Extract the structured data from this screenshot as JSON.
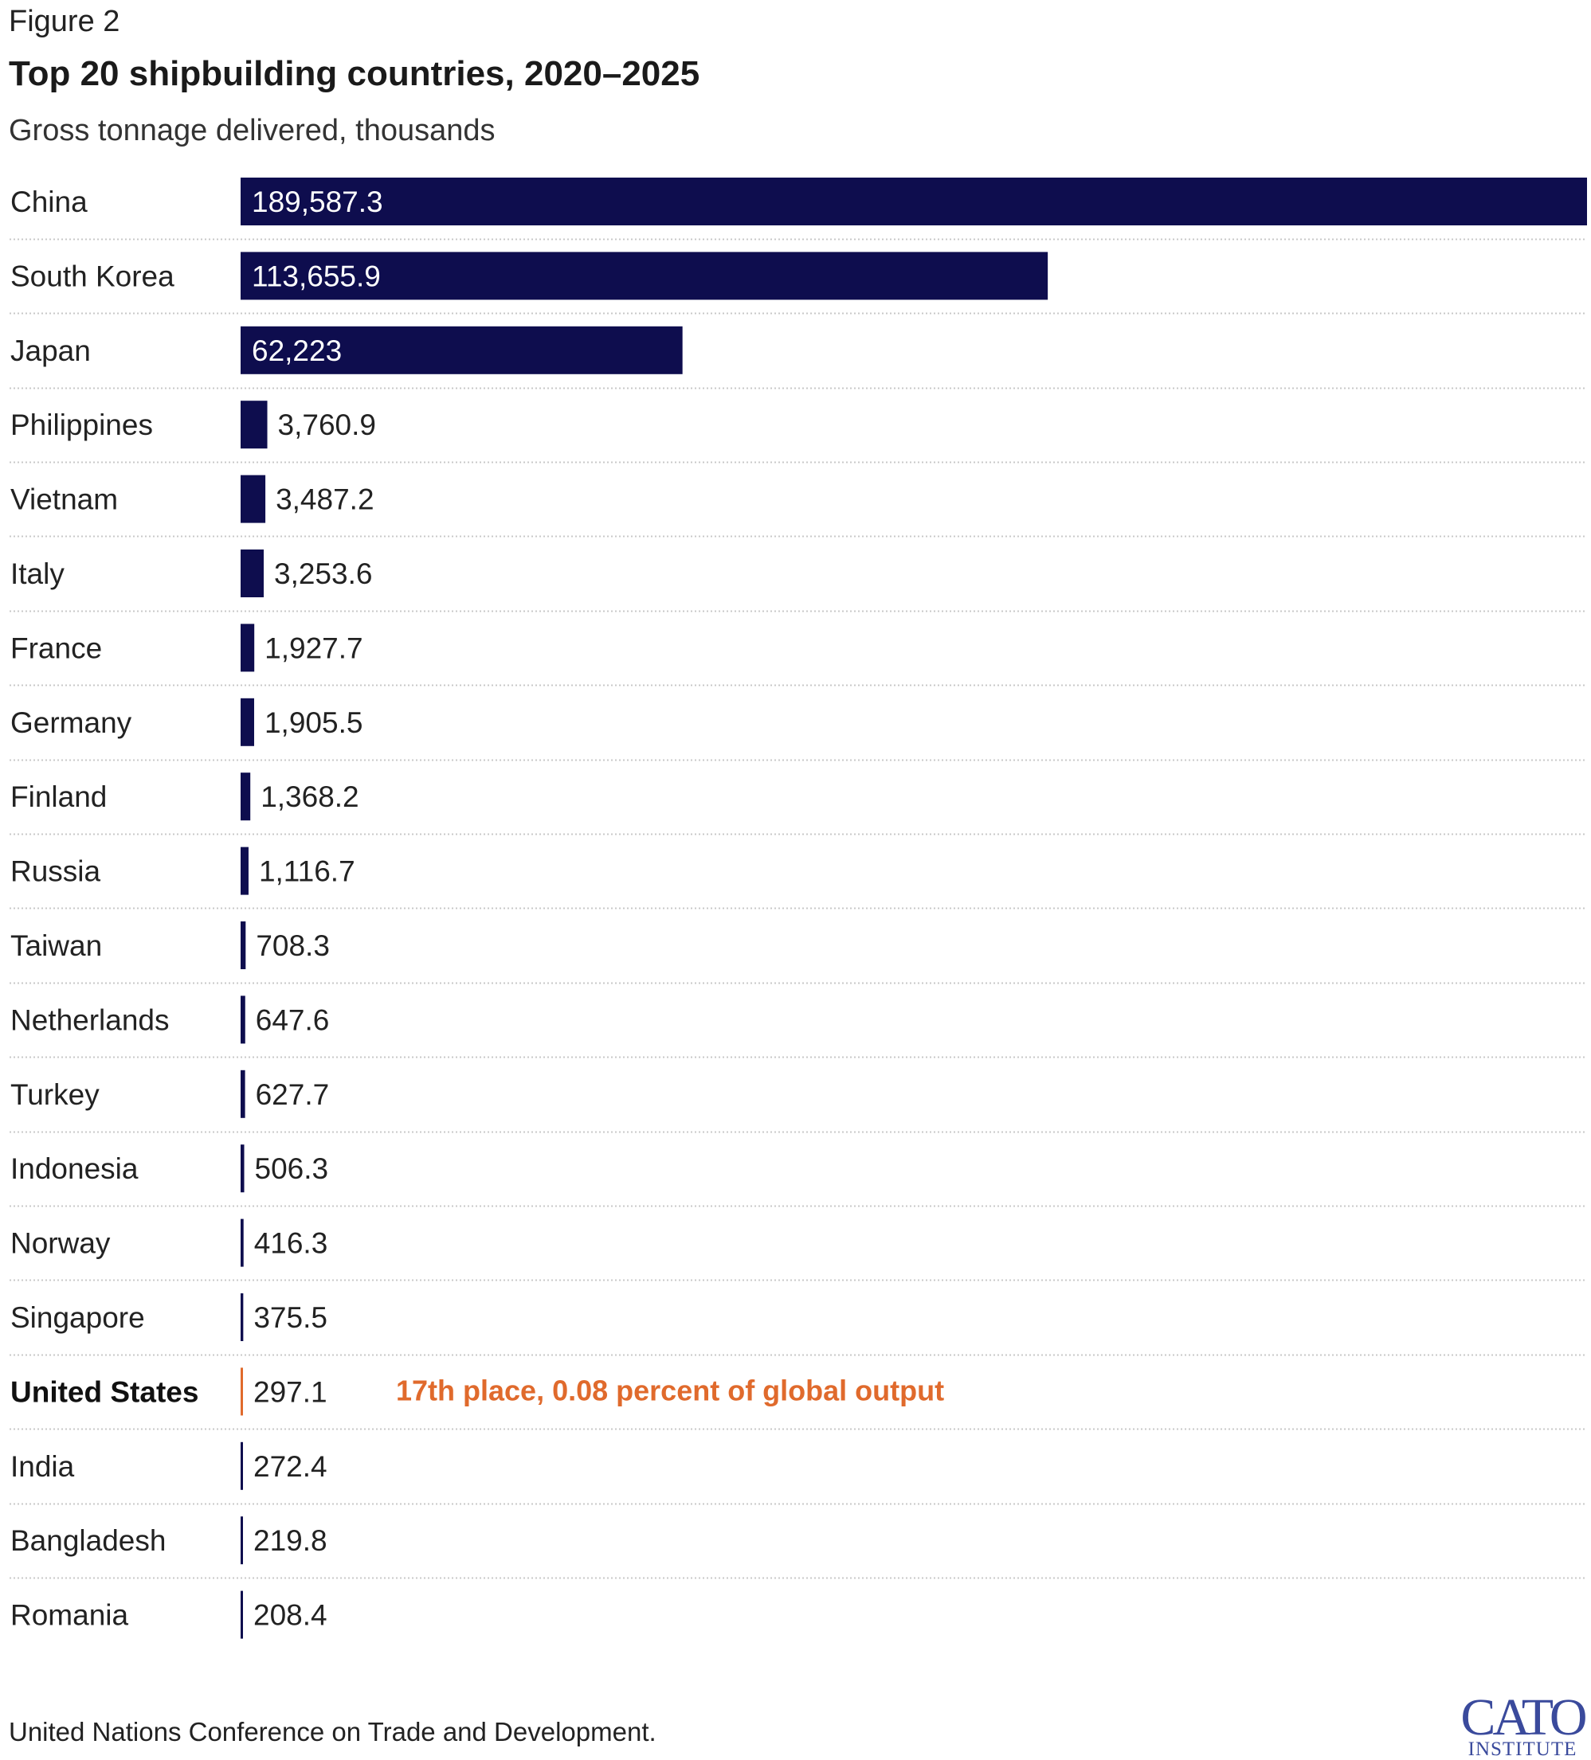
{
  "figure_label": "Figure 2",
  "title": "Top 20 shipbuilding countries, 2020–2025",
  "subtitle": "Gross tonnage delivered, thousands",
  "source": "United Nations Conference on Trade and Development.",
  "logo": {
    "line1": "CATO",
    "line2": "INSTITUTE"
  },
  "colors": {
    "bar": "#0e0d4e",
    "highlight": "#e06a2c",
    "gridline": "#c8c8c8",
    "text": "#222222",
    "logo": "#3a4a9c"
  },
  "chart_data": {
    "type": "bar",
    "orientation": "horizontal",
    "title": "Top 20 shipbuilding countries, 2020–2025",
    "subtitle": "Gross tonnage delivered, thousands",
    "categories": [
      "China",
      "South Korea",
      "Japan",
      "Philippines",
      "Vietnam",
      "Italy",
      "France",
      "Germany",
      "Finland",
      "Russia",
      "Taiwan",
      "Netherlands",
      "Turkey",
      "Indonesia",
      "Norway",
      "Singapore",
      "United States",
      "India",
      "Bangladesh",
      "Romania"
    ],
    "values": [
      189587.3,
      113655.9,
      62223,
      3760.9,
      3487.2,
      3253.6,
      1927.7,
      1905.5,
      1368.2,
      1116.7,
      708.3,
      647.6,
      627.7,
      506.3,
      416.3,
      375.5,
      297.1,
      272.4,
      219.8,
      208.4
    ],
    "value_labels": [
      "189,587.3",
      "113,655.9",
      "62,223",
      "3,760.9",
      "3,487.2",
      "3,253.6",
      "1,927.7",
      "1,905.5",
      "1,368.2",
      "1,116.7",
      "708.3",
      "647.6",
      "627.7",
      "506.3",
      "416.3",
      "375.5",
      "297.1",
      "272.4",
      "219.8",
      "208.4"
    ],
    "highlight_category": "United States",
    "annotation": "17th place, 0.08 percent of global output",
    "xlim": [
      0,
      189587.3
    ],
    "grid": false,
    "legend": "none"
  }
}
